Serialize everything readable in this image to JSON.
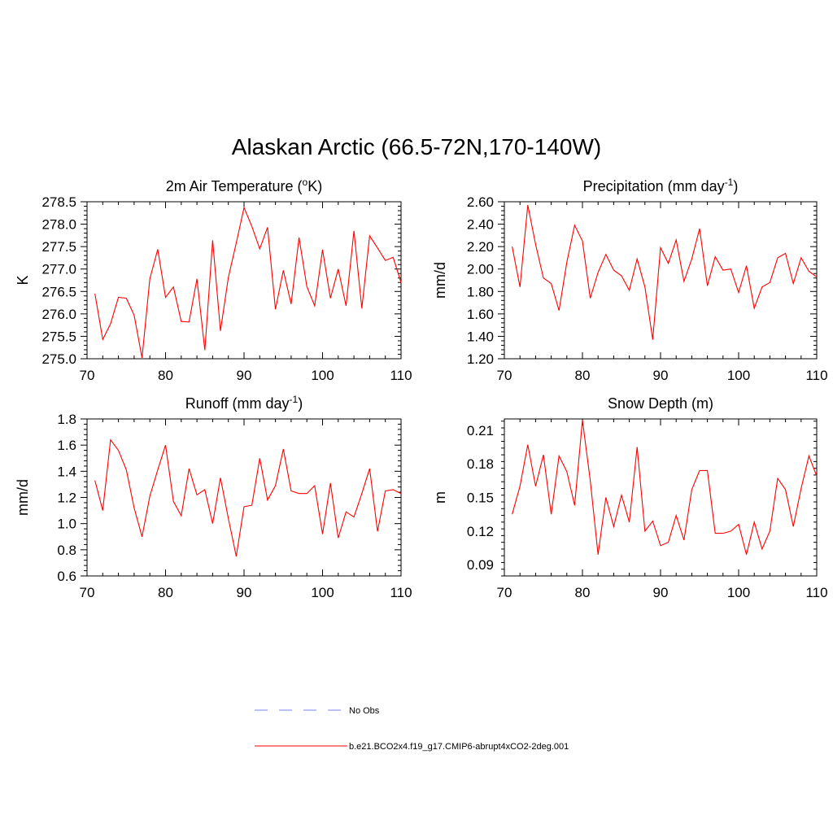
{
  "title": "Alaskan Arctic (66.5-72N,170-140W)",
  "legend": {
    "items": [
      {
        "label": "No Obs",
        "color": "#9999ff",
        "style": "dashed"
      },
      {
        "label": "b.e21.BCO2x4.f19_g17.CMIP6-abrupt4xCO2-2deg.001",
        "color": "#ff0000",
        "style": "solid"
      }
    ]
  },
  "chart_data": [
    {
      "type": "line",
      "title": "2m Air Temperature (",
      "title_sup": "o",
      "title_tail": "K)",
      "ylabel": "K",
      "xlim": [
        70,
        110
      ],
      "ylim": [
        275.0,
        278.5
      ],
      "xticks": [
        "70",
        "80",
        "90",
        "100",
        "110"
      ],
      "yticks": [
        "275.0",
        "275.5",
        "276.0",
        "276.5",
        "277.0",
        "277.5",
        "278.0",
        "278.5"
      ],
      "color": "#ff0000",
      "x": [
        71,
        72,
        73,
        74,
        75,
        76,
        77,
        78,
        79,
        80,
        81,
        82,
        83,
        84,
        85,
        86,
        87,
        88,
        89,
        90,
        91,
        92,
        93,
        94,
        95,
        96,
        97,
        98,
        99,
        100,
        101,
        102,
        103,
        104,
        105,
        106,
        107,
        108,
        109,
        110
      ],
      "values": [
        276.45,
        275.43,
        275.78,
        276.37,
        276.35,
        275.97,
        275.02,
        276.78,
        277.44,
        276.37,
        276.6,
        275.83,
        275.82,
        276.78,
        275.19,
        277.64,
        275.62,
        276.81,
        277.58,
        278.37,
        277.95,
        277.45,
        277.93,
        276.1,
        276.97,
        276.22,
        277.7,
        276.61,
        276.18,
        277.43,
        276.35,
        277.0,
        276.18,
        277.85,
        276.12,
        277.74,
        277.47,
        277.19,
        277.26,
        276.7
      ]
    },
    {
      "type": "line",
      "title": "Precipitation (mm day",
      "title_sup": "-1",
      "title_tail": ")",
      "ylabel": "mm/d",
      "xlim": [
        70,
        110
      ],
      "ylim": [
        1.2,
        2.6
      ],
      "xticks": [
        "70",
        "80",
        "90",
        "100",
        "110"
      ],
      "yticks": [
        "1.20",
        "1.40",
        "1.60",
        "1.80",
        "2.00",
        "2.20",
        "2.40",
        "2.60"
      ],
      "color": "#ff0000",
      "x": [
        71,
        72,
        73,
        74,
        75,
        76,
        77,
        78,
        79,
        80,
        81,
        82,
        83,
        84,
        85,
        86,
        87,
        88,
        89,
        90,
        91,
        92,
        93,
        94,
        95,
        96,
        97,
        98,
        99,
        100,
        101,
        102,
        103,
        104,
        105,
        106,
        107,
        108,
        109,
        110
      ],
      "values": [
        2.2,
        1.84,
        2.57,
        2.22,
        1.92,
        1.87,
        1.63,
        2.06,
        2.39,
        2.25,
        1.74,
        1.97,
        2.13,
        1.99,
        1.94,
        1.81,
        2.09,
        1.84,
        1.37,
        2.19,
        2.05,
        2.26,
        1.89,
        2.09,
        2.36,
        1.85,
        2.11,
        1.99,
        2.0,
        1.79,
        2.03,
        1.65,
        1.84,
        1.88,
        2.1,
        2.14,
        1.87,
        2.1,
        1.98,
        1.93
      ]
    },
    {
      "type": "line",
      "title": "Runoff (mm day",
      "title_sup": "-1",
      "title_tail": ")",
      "ylabel": "mm/d",
      "xlim": [
        70,
        110
      ],
      "ylim": [
        0.6,
        1.8
      ],
      "xticks": [
        "70",
        "80",
        "90",
        "100",
        "110"
      ],
      "yticks": [
        "0.6",
        "0.8",
        "1.0",
        "1.2",
        "1.4",
        "1.6",
        "1.8"
      ],
      "color": "#ff0000",
      "x": [
        71,
        72,
        73,
        74,
        75,
        76,
        77,
        78,
        79,
        80,
        81,
        82,
        83,
        84,
        85,
        86,
        87,
        88,
        89,
        90,
        91,
        92,
        93,
        94,
        95,
        96,
        97,
        98,
        99,
        100,
        101,
        102,
        103,
        104,
        105,
        106,
        107,
        108,
        109,
        110
      ],
      "values": [
        1.33,
        1.1,
        1.64,
        1.56,
        1.41,
        1.12,
        0.9,
        1.21,
        1.41,
        1.6,
        1.17,
        1.06,
        1.42,
        1.22,
        1.26,
        1.0,
        1.35,
        1.04,
        0.75,
        1.13,
        1.14,
        1.5,
        1.18,
        1.29,
        1.57,
        1.25,
        1.23,
        1.23,
        1.29,
        0.92,
        1.31,
        0.89,
        1.09,
        1.05,
        1.23,
        1.42,
        0.94,
        1.25,
        1.26,
        1.23
      ]
    },
    {
      "type": "line",
      "title": "Snow Depth (m)",
      "title_sup": "",
      "title_tail": "",
      "ylabel": "m",
      "xlim": [
        70,
        110
      ],
      "ylim": [
        0.08,
        0.22
      ],
      "xticks": [
        "70",
        "80",
        "90",
        "100",
        "110"
      ],
      "yticks": [
        "0.09",
        "0.12",
        "0.15",
        "0.18",
        "0.21"
      ],
      "ytick_values": [
        0.09,
        0.12,
        0.15,
        0.18,
        0.21
      ],
      "color": "#ff0000",
      "x": [
        71,
        72,
        73,
        74,
        75,
        76,
        77,
        78,
        79,
        80,
        81,
        82,
        83,
        84,
        85,
        86,
        87,
        88,
        89,
        90,
        91,
        92,
        93,
        94,
        95,
        96,
        97,
        98,
        99,
        100,
        101,
        102,
        103,
        104,
        105,
        106,
        107,
        108,
        109,
        110
      ],
      "values": [
        0.135,
        0.16,
        0.197,
        0.16,
        0.188,
        0.135,
        0.187,
        0.173,
        0.143,
        0.219,
        0.165,
        0.099,
        0.15,
        0.124,
        0.152,
        0.128,
        0.195,
        0.12,
        0.129,
        0.107,
        0.11,
        0.134,
        0.112,
        0.157,
        0.174,
        0.174,
        0.118,
        0.118,
        0.12,
        0.126,
        0.099,
        0.128,
        0.104,
        0.12,
        0.167,
        0.157,
        0.124,
        0.158,
        0.187,
        0.169
      ]
    }
  ]
}
